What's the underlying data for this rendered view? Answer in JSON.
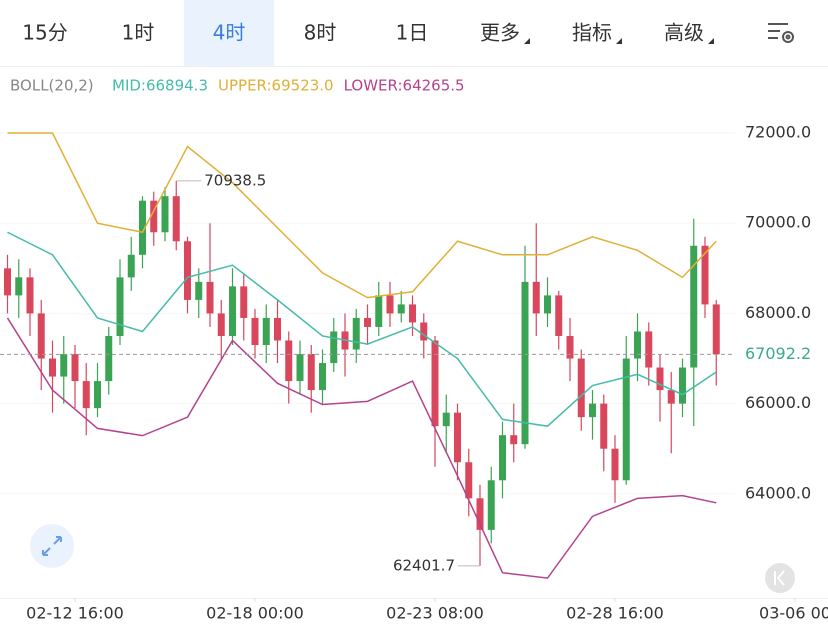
{
  "tabs": [
    "15分",
    "1时",
    "4时",
    "8时",
    "1日",
    "更多",
    "指标",
    "高级"
  ],
  "active_tab": 2,
  "chart_data": {
    "type": "candlestick",
    "indicator": "BOLL(20,2)",
    "up_color": "#3aa454",
    "down_color": "#d8475c",
    "open": [
      69000,
      68400,
      68800,
      68000,
      67000,
      66600,
      67100,
      66500,
      65900,
      66500,
      67500,
      68800,
      69300,
      70500,
      69800,
      70600,
      69600,
      68300,
      68700,
      68000,
      67500,
      68600,
      67900,
      67300,
      67900,
      67400,
      66500,
      67100,
      66300,
      66900,
      67600,
      67200,
      67900,
      67700,
      68400,
      68000,
      68200,
      67800,
      67400,
      65500,
      65800,
      64700,
      63900,
      63200,
      64300,
      65300,
      65100,
      68700,
      68000,
      68400,
      67500,
      67000,
      65700,
      66000,
      65000,
      64300,
      67000,
      67600,
      66800,
      66300,
      66000,
      66800,
      69500,
      68200
    ],
    "high": [
      69300,
      69200,
      69000,
      68300,
      67400,
      67500,
      67300,
      66900,
      66900,
      67700,
      69200,
      69700,
      70600,
      70700,
      70800,
      70938.5,
      69700,
      69000,
      70000,
      68300,
      69000,
      68900,
      68100,
      68200,
      68300,
      67600,
      67400,
      67300,
      67200,
      67900,
      68000,
      68100,
      68200,
      68700,
      68700,
      68500,
      68400,
      68000,
      67500,
      66200,
      66000,
      65000,
      64200,
      64600,
      65600,
      66000,
      69500,
      70000,
      68800,
      68500,
      67900,
      67200,
      66300,
      66200,
      65300,
      67500,
      68000,
      67800,
      67100,
      66700,
      67000,
      70100,
      69700,
      68300
    ],
    "low": [
      68000,
      67900,
      67500,
      66300,
      65800,
      66000,
      65900,
      65300,
      65700,
      66200,
      67300,
      68500,
      69000,
      69500,
      69600,
      69400,
      68000,
      67900,
      67700,
      67000,
      67300,
      67400,
      67000,
      66900,
      66900,
      66000,
      66200,
      65800,
      66000,
      66700,
      66600,
      66900,
      67300,
      67500,
      67700,
      67800,
      67500,
      67000,
      64600,
      64900,
      64300,
      63500,
      62401.7,
      62900,
      63900,
      64700,
      65000,
      67500,
      67700,
      67200,
      66500,
      65400,
      65200,
      64500,
      63800,
      64200,
      66500,
      66400,
      65600,
      64900,
      65700,
      65500,
      67900,
      66400
    ],
    "close": [
      68400,
      68800,
      68000,
      67000,
      66600,
      67100,
      66500,
      65900,
      66500,
      67500,
      68800,
      69300,
      70500,
      69800,
      70600,
      69600,
      68300,
      68700,
      68000,
      67500,
      68600,
      67900,
      67300,
      67900,
      67400,
      66500,
      67100,
      66300,
      66900,
      67600,
      67200,
      67900,
      67700,
      68400,
      68000,
      68200,
      67800,
      67400,
      65500,
      65800,
      64700,
      63900,
      63200,
      64300,
      65300,
      65100,
      68700,
      68000,
      68400,
      67500,
      67000,
      65700,
      66000,
      65000,
      64300,
      67000,
      67600,
      66800,
      66300,
      66000,
      66800,
      69500,
      68200,
      67092.2
    ],
    "band_x": [
      0,
      4,
      8,
      12,
      16,
      20,
      24,
      28,
      32,
      36,
      40,
      44,
      48,
      52,
      56,
      60,
      63
    ],
    "series": [
      {
        "label": "MID:66894.3",
        "color": "#45bba9",
        "values": [
          69800,
          69300,
          67900,
          67600,
          68800,
          69070,
          68300,
          67500,
          67320,
          67700,
          67000,
          65650,
          65500,
          66400,
          66650,
          66200,
          66700
        ]
      },
      {
        "label": "UPPER:69523.0",
        "color": "#e0b036",
        "values": [
          72000,
          72000,
          70000,
          69800,
          71700,
          70900,
          69900,
          68900,
          68350,
          68480,
          69600,
          69300,
          69300,
          69700,
          69400,
          68800,
          69600
        ]
      },
      {
        "label": "LOWER:64265.5",
        "color": "#b5428c",
        "values": [
          67900,
          66300,
          65450,
          65290,
          65700,
          67400,
          66450,
          65980,
          66050,
          66500,
          64400,
          62250,
          62130,
          63500,
          63900,
          63960,
          63800
        ]
      }
    ],
    "ylim": [
      61756,
      72733
    ],
    "yticks": [
      {
        "value": 64000,
        "label": "64000.0"
      },
      {
        "value": 66000,
        "label": "66000.0"
      },
      {
        "value": 68000,
        "label": "68000.0"
      },
      {
        "value": 70000,
        "label": "70000.0"
      },
      {
        "value": 72000,
        "label": "72000.0"
      }
    ],
    "xlim": [
      -0.67,
      73
    ],
    "xticks": [
      {
        "value": 6,
        "label": "02-12 16:00"
      },
      {
        "value": 22,
        "label": "02-18 00:00"
      },
      {
        "value": 38,
        "label": "02-23 08:00"
      },
      {
        "value": 54,
        "label": "02-28 16:00"
      },
      {
        "value": 70,
        "label": "03-06 00"
      }
    ],
    "max_index": 15,
    "min_index": 42
  }
}
